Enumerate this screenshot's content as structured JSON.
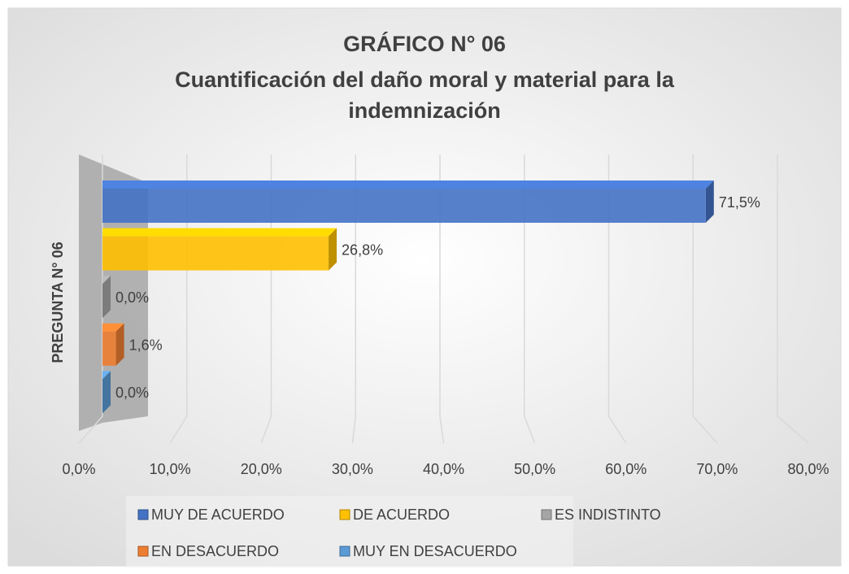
{
  "chart_data": {
    "type": "bar3d_horizontal",
    "title": [
      "GRÁFICO N° 06",
      "Cuantificación del daño moral y material para la",
      "indemnización"
    ],
    "categories": [
      "PREGUNTA N° 06"
    ],
    "series": [
      {
        "name": "MUY DE ACUERDO",
        "color": "#4472c4",
        "values": [
          71.5
        ],
        "value_labels": [
          "71,5%"
        ]
      },
      {
        "name": "DE ACUERDO",
        "color": "#ffc000",
        "values": [
          26.8
        ],
        "value_labels": [
          "26,8%"
        ]
      },
      {
        "name": "ES INDISTINTO",
        "color": "#a5a5a5",
        "values": [
          0.0
        ],
        "value_labels": [
          "0,0%"
        ]
      },
      {
        "name": "EN DESACUERDO",
        "color": "#ed7d31",
        "values": [
          1.6
        ],
        "value_labels": [
          "1,6%"
        ]
      },
      {
        "name": "MUY EN DESACUERDO",
        "color": "#5b9bd5",
        "values": [
          0.0
        ],
        "value_labels": [
          "0,0%"
        ]
      }
    ],
    "xlim": [
      0,
      80
    ],
    "xticks": [
      {
        "value": 0,
        "label": "0,0%"
      },
      {
        "value": 10,
        "label": "10,0%"
      },
      {
        "value": 20,
        "label": "20,0%"
      },
      {
        "value": 30,
        "label": "30,0%"
      },
      {
        "value": 40,
        "label": "40,0%"
      },
      {
        "value": 50,
        "label": "50,0%"
      },
      {
        "value": 60,
        "label": "60,0%"
      },
      {
        "value": 70,
        "label": "70,0%"
      },
      {
        "value": 80,
        "label": "80,0%"
      }
    ],
    "grid": true
  }
}
